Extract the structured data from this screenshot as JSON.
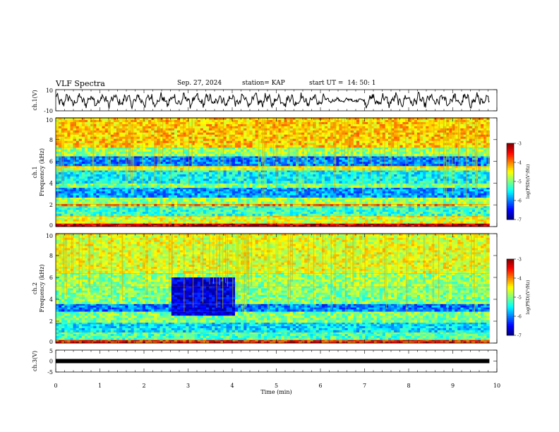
{
  "header": {
    "title": "VLF Spectra",
    "date": "Sep. 27, 2024",
    "station": "station= KAP",
    "start": "start UT =  14: 50: 1"
  },
  "chart_data": [
    {
      "type": "line",
      "name": "channel-1-waveform",
      "ylabel": "ch.1(V)",
      "yticks": [
        "10",
        "-10"
      ],
      "ylim": [
        -10,
        10
      ],
      "xlim": [
        0,
        10
      ],
      "x_extent": [
        0,
        9.83
      ],
      "description_of_values": "noisy signal oscillating roughly between -8 and +8 V, calmer from ~6.1 to ~7.0 min",
      "color": "#000000"
    },
    {
      "type": "heatmap",
      "name": "channel-1-spectrogram",
      "ylabel_top": "ch.1",
      "ylabel": "Frequency (kHz)",
      "yticks": [
        "0",
        "2",
        "4",
        "6",
        "8",
        "10"
      ],
      "ylim": [
        0,
        10
      ],
      "xlim": [
        0,
        10
      ],
      "x_extent": [
        0,
        9.83
      ],
      "bands_khz": [
        {
          "from": 0.0,
          "to": 0.3,
          "level": -3.3
        },
        {
          "from": 0.3,
          "to": 1.0,
          "level": -4.6
        },
        {
          "from": 1.0,
          "to": 1.9,
          "level": -5.3
        },
        {
          "from": 1.9,
          "to": 2.1,
          "level": -4.1
        },
        {
          "from": 2.1,
          "to": 2.7,
          "level": -4.9
        },
        {
          "from": 2.7,
          "to": 3.6,
          "level": -5.9
        },
        {
          "from": 3.6,
          "to": 4.0,
          "level": -5.0
        },
        {
          "from": 4.0,
          "to": 5.2,
          "level": -5.5
        },
        {
          "from": 5.2,
          "to": 5.6,
          "level": -4.6
        },
        {
          "from": 5.6,
          "to": 6.5,
          "level": -6.0
        },
        {
          "from": 6.5,
          "to": 7.3,
          "level": -4.9
        },
        {
          "from": 7.3,
          "to": 10.0,
          "level": -4.3
        }
      ],
      "colorbar": {
        "label": "log(PSD)(V²/Hz)",
        "ticks": [
          "-3",
          "-4",
          "-5",
          "-6",
          "-7"
        ],
        "range": [
          -7,
          -3
        ]
      }
    },
    {
      "type": "heatmap",
      "name": "channel-2-spectrogram",
      "ylabel_top": "ch.2",
      "ylabel": "Frequency (kHz)",
      "yticks": [
        "0",
        "2",
        "4",
        "6",
        "8",
        "10"
      ],
      "ylim": [
        0,
        10
      ],
      "xlim": [
        0,
        10
      ],
      "x_extent": [
        0,
        9.83
      ],
      "bands_khz": [
        {
          "from": 0.0,
          "to": 0.3,
          "level": -3.6
        },
        {
          "from": 0.3,
          "to": 1.0,
          "level": -5.2
        },
        {
          "from": 1.0,
          "to": 1.9,
          "level": -5.6
        },
        {
          "from": 1.9,
          "to": 2.9,
          "level": -5.0
        },
        {
          "from": 2.9,
          "to": 3.6,
          "level": -6.0
        },
        {
          "from": 3.6,
          "to": 5.2,
          "level": -5.0
        },
        {
          "from": 5.2,
          "to": 6.4,
          "level": -4.9
        },
        {
          "from": 6.4,
          "to": 10.0,
          "level": -4.6
        }
      ],
      "quiet_window": {
        "x": [
          2.6,
          4.05
        ],
        "f": [
          2.6,
          6.1
        ],
        "level": -6.6
      },
      "colorbar": {
        "label": "log(PSD)(V²/Hz)",
        "ticks": [
          "-3",
          "-4",
          "-5",
          "-6",
          "-7"
        ],
        "range": [
          -7,
          -3
        ]
      }
    },
    {
      "type": "line",
      "name": "channel-3-waveform",
      "ylabel": "ch.3(V)",
      "yticks": [
        "5",
        "0",
        "-5"
      ],
      "ylim": [
        -5,
        5
      ],
      "xlim": [
        0,
        10
      ],
      "x_extent": [
        0,
        9.83
      ],
      "values_constant": 0,
      "color": "#000000"
    }
  ],
  "xaxis": {
    "label": "Time (min)",
    "ticks": [
      "0",
      "1",
      "2",
      "3",
      "4",
      "5",
      "6",
      "7",
      "8",
      "9",
      "10"
    ]
  }
}
